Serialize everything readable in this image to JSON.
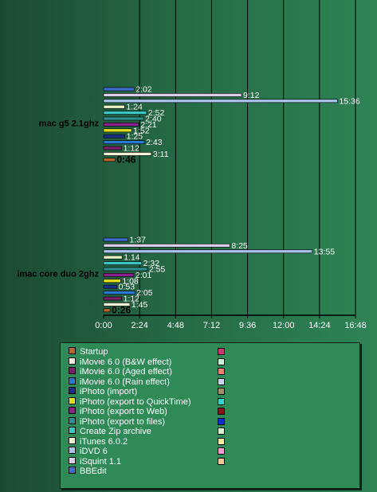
{
  "chart_data": {
    "type": "bar",
    "orientation": "horizontal",
    "xlim_seconds": [
      0,
      1008
    ],
    "x_ticks": [
      "0:00",
      "2:24",
      "4:48",
      "7:12",
      "9:36",
      "12:00",
      "14:24",
      "16:48"
    ],
    "groups": [
      {
        "name": "mac g5 2.1ghz",
        "series": [
          {
            "label": "2:02",
            "seconds": 122,
            "color": "#3f6ccf"
          },
          {
            "label": "9:12",
            "seconds": 552,
            "color": "#d9cfe8"
          },
          {
            "label": "15:36",
            "seconds": 936,
            "color": "#a9c5ea"
          },
          {
            "label": "1:24",
            "seconds": 84,
            "color": "#e8f2c8"
          },
          {
            "label": "2:52",
            "seconds": 172,
            "color": "#3ec6c6"
          },
          {
            "label": "2:40",
            "seconds": 160,
            "color": "#2f8f8f"
          },
          {
            "label": "2:21",
            "seconds": 141,
            "color": "#8b1f8b"
          },
          {
            "label": "1:52",
            "seconds": 112,
            "color": "#e0e020"
          },
          {
            "label": "1:25",
            "seconds": 85,
            "color": "#1a2f8a"
          },
          {
            "label": "2:43",
            "seconds": 163,
            "color": "#2a78d0"
          },
          {
            "label": "1:12",
            "seconds": 72,
            "color": "#7a1f6a"
          },
          {
            "label": "3:11",
            "seconds": 191,
            "color": "#f2f2d8"
          },
          {
            "label": "0:46",
            "seconds": 46,
            "color": "#b8642a",
            "bold": true
          }
        ]
      },
      {
        "name": "imac core duo 2ghz",
        "series": [
          {
            "label": "1:37",
            "seconds": 97,
            "color": "#3f6ccf"
          },
          {
            "label": "8:25",
            "seconds": 505,
            "color": "#d9cfe8"
          },
          {
            "label": "13:55",
            "seconds": 835,
            "color": "#a9c5ea"
          },
          {
            "label": "1:14",
            "seconds": 74,
            "color": "#e8f2c8"
          },
          {
            "label": "2:32",
            "seconds": 152,
            "color": "#3ec6c6"
          },
          {
            "label": "2:55",
            "seconds": 175,
            "color": "#2f8f8f"
          },
          {
            "label": "2:01",
            "seconds": 121,
            "color": "#8b1f8b"
          },
          {
            "label": "1:08",
            "seconds": 68,
            "color": "#e0e020"
          },
          {
            "label": "0:53",
            "seconds": 53,
            "color": "#1a2f8a"
          },
          {
            "label": "2:05",
            "seconds": 125,
            "color": "#2a78d0"
          },
          {
            "label": "1:12",
            "seconds": 72,
            "color": "#7a1f6a"
          },
          {
            "label": "1:45",
            "seconds": 105,
            "color": "#f2f2d8"
          },
          {
            "label": "0:26",
            "seconds": 26,
            "color": "#b8642a",
            "bold": true
          }
        ]
      }
    ],
    "legend": {
      "placement": "bottom",
      "entries": [
        {
          "label": "Startup",
          "color": "#b8642a"
        },
        {
          "label": "iMovie 6.0 (B&W effect)",
          "color": "#f2f2d8"
        },
        {
          "label": "iMovie 6.0 (Aged effect)",
          "color": "#7a1f6a"
        },
        {
          "label": "iMovie 6.0 (Rain effect)",
          "color": "#2a78d0"
        },
        {
          "label": "iPhoto (import)",
          "color": "#1a2f8a"
        },
        {
          "label": "iPhoto (export to QuickTime)",
          "color": "#e0e020"
        },
        {
          "label": "iPhoto (export to Web)",
          "color": "#8b1f8b"
        },
        {
          "label": "iPhoto (export to files)",
          "color": "#2f8f8f"
        },
        {
          "label": "Create Zip archive",
          "color": "#3ec6c6"
        },
        {
          "label": "iTunes 6.0.2",
          "color": "#e8f2c8"
        },
        {
          "label": "iDVD 6",
          "color": "#a9c5ea"
        },
        {
          "label": "iSquint 1.1",
          "color": "#d9cfe8"
        },
        {
          "label": "BBEdit",
          "color": "#3f6ccf"
        }
      ],
      "extra_swatches": [
        "#c8386e",
        "#c8f0d8",
        "#f08070",
        "#c8d8f0",
        "#a09068",
        "#30d8c8",
        "#8a1818",
        "#1030c8",
        "#d8f0d0",
        "#f0f0a0",
        "#f0a0d0",
        "#f0c890"
      ]
    }
  }
}
